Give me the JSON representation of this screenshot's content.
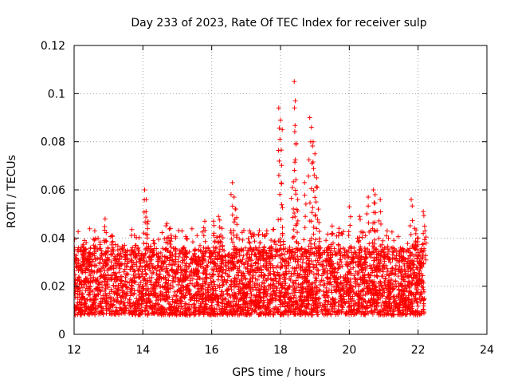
{
  "chart_data": {
    "type": "scatter",
    "title": "Day 233 of 2023, Rate Of TEC Index for receiver sulp",
    "xlabel": "GPS time / hours",
    "ylabel": "ROTI / TECUs",
    "xlim": [
      12,
      24
    ],
    "ylim": [
      0,
      0.12
    ],
    "xticks": [
      "12",
      "14",
      "16",
      "18",
      "20",
      "22",
      "24"
    ],
    "yticks": [
      "0",
      "0.02",
      "0.04",
      "0.06",
      "0.08",
      "0.1",
      "0.12"
    ],
    "grid": true,
    "marker": "+",
    "color": "#ff0000",
    "series": [
      {
        "name": "ROTI",
        "x_range": [
          12.0,
          22.2
        ],
        "typical_range": [
          0.008,
          0.03
        ],
        "peaks": [
          {
            "x": 12.3,
            "y": 0.039
          },
          {
            "x": 12.6,
            "y": 0.043
          },
          {
            "x": 12.9,
            "y": 0.048
          },
          {
            "x": 13.1,
            "y": 0.041
          },
          {
            "x": 13.5,
            "y": 0.034
          },
          {
            "x": 13.8,
            "y": 0.037
          },
          {
            "x": 14.05,
            "y": 0.06
          },
          {
            "x": 14.1,
            "y": 0.056
          },
          {
            "x": 14.15,
            "y": 0.047
          },
          {
            "x": 14.3,
            "y": 0.039
          },
          {
            "x": 14.7,
            "y": 0.046
          },
          {
            "x": 14.8,
            "y": 0.044
          },
          {
            "x": 15.2,
            "y": 0.036
          },
          {
            "x": 15.5,
            "y": 0.033
          },
          {
            "x": 15.8,
            "y": 0.047
          },
          {
            "x": 16.05,
            "y": 0.047
          },
          {
            "x": 16.2,
            "y": 0.049
          },
          {
            "x": 16.3,
            "y": 0.044
          },
          {
            "x": 16.6,
            "y": 0.063
          },
          {
            "x": 16.65,
            "y": 0.057
          },
          {
            "x": 16.7,
            "y": 0.052
          },
          {
            "x": 17.1,
            "y": 0.043
          },
          {
            "x": 17.4,
            "y": 0.038
          },
          {
            "x": 17.7,
            "y": 0.036
          },
          {
            "x": 17.95,
            "y": 0.094
          },
          {
            "x": 18.0,
            "y": 0.089
          },
          {
            "x": 18.05,
            "y": 0.085
          },
          {
            "x": 18.35,
            "y": 0.061
          },
          {
            "x": 18.4,
            "y": 0.105
          },
          {
            "x": 18.43,
            "y": 0.097
          },
          {
            "x": 18.45,
            "y": 0.079
          },
          {
            "x": 18.5,
            "y": 0.056
          },
          {
            "x": 18.7,
            "y": 0.063
          },
          {
            "x": 18.85,
            "y": 0.09
          },
          {
            "x": 18.9,
            "y": 0.086
          },
          {
            "x": 18.95,
            "y": 0.08
          },
          {
            "x": 19.0,
            "y": 0.075
          },
          {
            "x": 19.05,
            "y": 0.065
          },
          {
            "x": 19.1,
            "y": 0.052
          },
          {
            "x": 19.5,
            "y": 0.045
          },
          {
            "x": 19.7,
            "y": 0.044
          },
          {
            "x": 20.0,
            "y": 0.053
          },
          {
            "x": 20.3,
            "y": 0.049
          },
          {
            "x": 20.55,
            "y": 0.057
          },
          {
            "x": 20.7,
            "y": 0.06
          },
          {
            "x": 20.75,
            "y": 0.058
          },
          {
            "x": 20.9,
            "y": 0.056
          },
          {
            "x": 21.1,
            "y": 0.043
          },
          {
            "x": 21.5,
            "y": 0.035
          },
          {
            "x": 21.8,
            "y": 0.056
          },
          {
            "x": 21.9,
            "y": 0.044
          },
          {
            "x": 22.0,
            "y": 0.04
          },
          {
            "x": 22.15,
            "y": 0.051
          },
          {
            "x": 22.2,
            "y": 0.043
          }
        ]
      }
    ]
  }
}
